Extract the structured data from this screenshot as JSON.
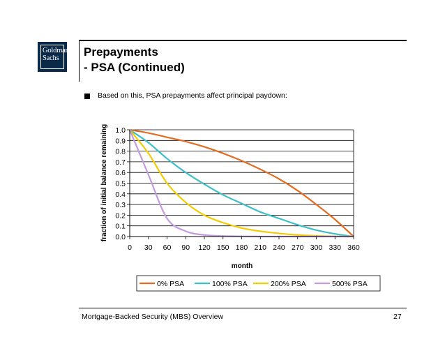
{
  "slide": {
    "logo_line1": "Goldman",
    "logo_line2": "Sachs",
    "title_line1": "Prepayments",
    "title_line2": "- PSA (Continued)",
    "bullet": "Based on this, PSA prepayments affect principal paydown:",
    "footer": "Mortgage-Backed Security (MBS) Overview",
    "page_number": "27"
  },
  "colors": {
    "0% PSA": "#e46c22",
    "100% PSA": "#3cbfc8",
    "200% PSA": "#f2cc00",
    "500% PSA": "#c39be1"
  },
  "chart_data": {
    "type": "line",
    "title": "",
    "xlabel": "month",
    "ylabel": "fraction of initial balance remaining",
    "xlim": [
      0,
      360
    ],
    "ylim": [
      0,
      1
    ],
    "x_ticks": [
      "0",
      "30",
      "60",
      "90",
      "120",
      "150",
      "180",
      "210",
      "240",
      "270",
      "300",
      "330",
      "360"
    ],
    "y_ticks": [
      "0.0",
      "0.1",
      "0.2",
      "0.3",
      "0.4",
      "0.5",
      "0.6",
      "0.7",
      "0.8",
      "0.9",
      "1.0"
    ],
    "grid": "horizontal",
    "legend": "bottom",
    "x": [
      0,
      30,
      60,
      90,
      120,
      150,
      180,
      210,
      240,
      270,
      300,
      330,
      360
    ],
    "series": [
      {
        "name": "0% PSA",
        "values": [
          1.0,
          0.97,
          0.93,
          0.89,
          0.84,
          0.78,
          0.71,
          0.63,
          0.54,
          0.43,
          0.3,
          0.16,
          0.0
        ]
      },
      {
        "name": "100% PSA",
        "values": [
          1.0,
          0.88,
          0.73,
          0.6,
          0.49,
          0.39,
          0.31,
          0.23,
          0.17,
          0.11,
          0.06,
          0.025,
          0.0
        ]
      },
      {
        "name": "200% PSA",
        "values": [
          1.0,
          0.78,
          0.5,
          0.32,
          0.2,
          0.13,
          0.08,
          0.05,
          0.03,
          0.015,
          0.007,
          0.002,
          0.0
        ]
      },
      {
        "name": "500% PSA",
        "values": [
          1.0,
          0.58,
          0.17,
          0.05,
          0.015,
          0.005,
          0.002,
          0.0,
          0.0,
          0.0,
          0.0,
          0.0,
          0.0
        ]
      }
    ]
  }
}
